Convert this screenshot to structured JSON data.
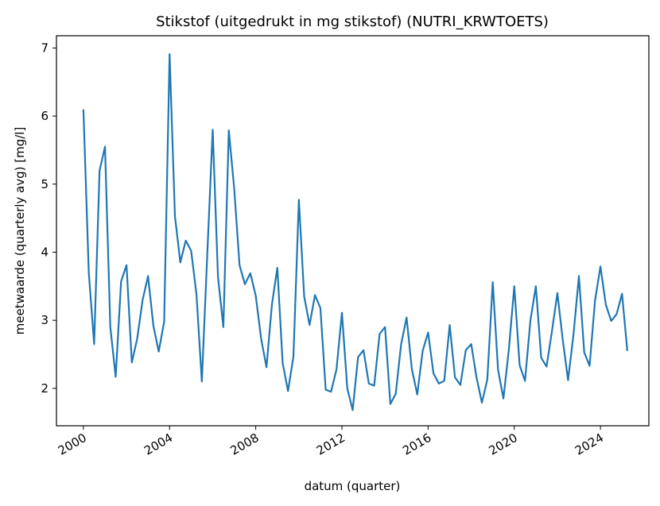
{
  "chart_data": {
    "type": "line",
    "title": "Stikstof (uitgedrukt in mg stikstof) (NUTRI_KRWTOETS)",
    "xlabel": "datum (quarter)",
    "ylabel": "meetwaarde (quarterly avg) [mg/l]",
    "x_ticks": [
      "2000",
      "2004",
      "2008",
      "2012",
      "2016",
      "2020",
      "2024"
    ],
    "y_ticks": [
      "2",
      "3",
      "4",
      "5",
      "6",
      "7"
    ],
    "xlim": [
      "1998-10-01",
      "2026-04-01"
    ],
    "ylim": [
      1.45,
      7.18
    ],
    "grid": false,
    "series": [
      {
        "color": "#1f77b4",
        "x": [
          "2000-01-01",
          "2000-04-01",
          "2000-07-01",
          "2000-10-01",
          "2001-01-01",
          "2001-04-01",
          "2001-07-01",
          "2001-10-01",
          "2002-01-01",
          "2002-04-01",
          "2002-07-01",
          "2002-10-01",
          "2003-01-01",
          "2003-04-01",
          "2003-07-01",
          "2003-10-01",
          "2004-01-01",
          "2004-04-01",
          "2004-07-01",
          "2004-10-01",
          "2005-01-01",
          "2005-04-01",
          "2005-07-01",
          "2005-10-01",
          "2006-01-01",
          "2006-04-01",
          "2006-07-01",
          "2006-10-01",
          "2007-01-01",
          "2007-04-01",
          "2007-07-01",
          "2007-10-01",
          "2008-01-01",
          "2008-04-01",
          "2008-07-01",
          "2008-10-01",
          "2009-01-01",
          "2009-04-01",
          "2009-07-01",
          "2009-10-01",
          "2010-01-01",
          "2010-04-01",
          "2010-07-01",
          "2010-10-01",
          "2011-01-01",
          "2011-04-01",
          "2011-07-01",
          "2011-10-01",
          "2012-01-01",
          "2012-04-01",
          "2012-07-01",
          "2012-10-01",
          "2013-01-01",
          "2013-04-01",
          "2013-07-01",
          "2013-10-01",
          "2014-01-01",
          "2014-04-01",
          "2014-07-01",
          "2014-10-01",
          "2015-01-01",
          "2015-04-01",
          "2015-07-01",
          "2015-10-01",
          "2016-01-01",
          "2016-04-01",
          "2016-07-01",
          "2016-10-01",
          "2017-01-01",
          "2017-04-01",
          "2017-07-01",
          "2017-10-01",
          "2018-01-01",
          "2018-04-01",
          "2018-07-01",
          "2018-10-01",
          "2019-01-01",
          "2019-04-01",
          "2019-07-01",
          "2019-10-01",
          "2020-01-01",
          "2020-04-01",
          "2020-07-01",
          "2020-10-01",
          "2021-01-01",
          "2021-04-01",
          "2021-07-01",
          "2021-10-01",
          "2022-01-01",
          "2022-04-01",
          "2022-07-01",
          "2022-10-01",
          "2023-01-01",
          "2023-04-01",
          "2023-07-01",
          "2023-10-01",
          "2024-01-01",
          "2024-04-01",
          "2024-07-01",
          "2024-10-01",
          "2025-01-01",
          "2025-04-01"
        ],
        "y": [
          6.1,
          3.7,
          2.65,
          5.2,
          5.55,
          2.9,
          2.17,
          3.57,
          3.81,
          2.38,
          2.73,
          3.3,
          3.65,
          2.92,
          2.54,
          2.98,
          6.91,
          4.53,
          3.85,
          4.17,
          4.02,
          3.38,
          2.1,
          3.97,
          5.8,
          3.63,
          2.9,
          5.79,
          4.93,
          3.81,
          3.53,
          3.69,
          3.36,
          2.73,
          2.31,
          3.23,
          3.77,
          2.37,
          1.96,
          2.47,
          4.77,
          3.35,
          2.93,
          3.37,
          3.18,
          1.98,
          1.95,
          2.28,
          3.11,
          2.0,
          1.68,
          2.46,
          2.56,
          2.07,
          2.04,
          2.8,
          2.9,
          1.77,
          1.92,
          2.65,
          3.04,
          2.28,
          1.91,
          2.55,
          2.82,
          2.22,
          2.07,
          2.11,
          2.93,
          2.16,
          2.05,
          2.56,
          2.65,
          2.16,
          1.79,
          2.13,
          3.56,
          2.27,
          1.85,
          2.57,
          3.5,
          2.34,
          2.11,
          3.0,
          3.5,
          2.45,
          2.32,
          2.84,
          3.4,
          2.72,
          2.12,
          2.79,
          3.65,
          2.53,
          2.33,
          3.29,
          3.79,
          3.23,
          2.99,
          3.09,
          3.39,
          2.55
        ]
      }
    ]
  }
}
